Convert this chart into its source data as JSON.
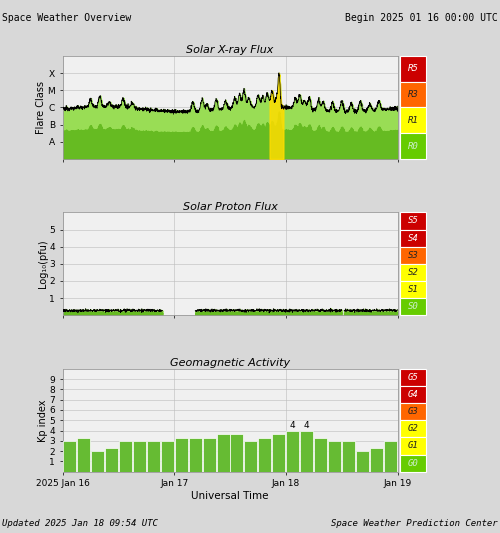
{
  "title_left": "Space Weather Overview",
  "title_right": "Begin 2025 01 16 00:00 UTC",
  "footer_left": "Updated 2025 Jan 18 09:54 UTC",
  "footer_right": "Space Weather Prediction Center",
  "xlabel": "Universal Time",
  "xtick_labels": [
    "2025 Jan 16",
    "Jan 17",
    "Jan 18",
    "Jan 19"
  ],
  "xtick_positions": [
    0,
    24,
    48,
    72
  ],
  "xmax": 72,
  "panel1_title": "Solar X-ray Flux",
  "panel1_ylabel": "Flare Class",
  "panel1_yticks": [
    1,
    2,
    3,
    4,
    5
  ],
  "panel1_yticklabels": [
    "A",
    "B",
    "C",
    "M",
    "X"
  ],
  "panel1_ylim": [
    0,
    6
  ],
  "panel1_legend_labels": [
    "R5",
    "R3",
    "R1",
    "R0"
  ],
  "panel1_legend_colors": [
    "#cc0000",
    "#ff6600",
    "#ffff00",
    "#66cc00"
  ],
  "panel2_title": "Solar Proton Flux",
  "panel2_ylabel": "Log₁₀(pfu)",
  "panel2_yticks": [
    1,
    2,
    3,
    4,
    5
  ],
  "panel2_yticklabels": [
    "1",
    "2",
    "3",
    "4",
    "5"
  ],
  "panel2_ylim": [
    0,
    6
  ],
  "panel2_legend_labels": [
    "S5",
    "S4",
    "S3",
    "S2",
    "S1",
    "S0"
  ],
  "panel2_legend_colors": [
    "#cc0000",
    "#cc0000",
    "#ff6600",
    "#ffff00",
    "#ffff00",
    "#66cc00"
  ],
  "panel3_title": "Geomagnetic Activity",
  "panel3_ylabel": "Kp index",
  "panel3_yticks": [
    1,
    2,
    3,
    4,
    5,
    6,
    7,
    8,
    9
  ],
  "panel3_yticklabels": [
    "1",
    "2",
    "3",
    "4",
    "5",
    "6",
    "7",
    "8",
    "9"
  ],
  "panel3_ylim": [
    0,
    10
  ],
  "panel3_legend_labels": [
    "G5",
    "G4",
    "G3",
    "G2",
    "G1",
    "G0"
  ],
  "panel3_legend_colors": [
    "#cc0000",
    "#cc0000",
    "#ff6600",
    "#ffff00",
    "#ffff00",
    "#66cc00"
  ],
  "bg_color": "#d8d8d8",
  "plot_bg": "#f0f0f0",
  "grid_color": "#bbbbbb",
  "line_color": "#000000",
  "fill_top_color": "#88cc44",
  "fill_bottom_color": "#ccee99",
  "kp_bar_times": [
    1.5,
    4.5,
    7.5,
    10.5,
    13.5,
    16.5,
    19.5,
    22.5,
    25.5,
    28.5,
    31.5,
    34.5,
    37.5,
    40.5,
    43.5,
    46.5,
    49.5,
    52.5,
    55.5,
    58.5,
    61.5,
    64.5,
    67.5,
    70.5
  ],
  "kp_bar_values": [
    3.0,
    3.3,
    2.0,
    2.3,
    3.0,
    3.0,
    3.0,
    3.0,
    3.3,
    3.3,
    3.3,
    3.7,
    3.7,
    3.0,
    3.3,
    3.7,
    4.0,
    4.0,
    3.3,
    3.0,
    3.0,
    2.0,
    2.3,
    3.0
  ],
  "kp_bar_labels": [
    null,
    null,
    null,
    null,
    null,
    null,
    null,
    null,
    null,
    null,
    null,
    null,
    null,
    null,
    null,
    null,
    "4",
    "4",
    null,
    null,
    null,
    null,
    null,
    null
  ],
  "kp_bar_color": "#66bb33",
  "kp_bar_width": 2.8
}
